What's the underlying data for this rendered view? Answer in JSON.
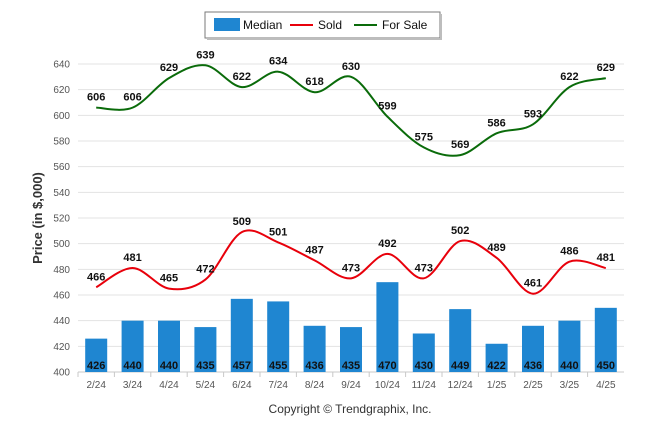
{
  "chart_data": {
    "type": "bar+line",
    "categories": [
      "2/24",
      "3/24",
      "4/24",
      "5/24",
      "6/24",
      "7/24",
      "8/24",
      "9/24",
      "10/24",
      "11/24",
      "12/24",
      "1/25",
      "2/25",
      "3/25",
      "4/25"
    ],
    "series": [
      {
        "name": "Median",
        "kind": "bar",
        "color": "#1f86d1",
        "values": [
          426,
          440,
          440,
          435,
          457,
          455,
          436,
          435,
          470,
          430,
          449,
          422,
          436,
          440,
          450
        ]
      },
      {
        "name": "Sold",
        "kind": "line",
        "color": "#e8000b",
        "values": [
          466,
          481,
          465,
          472,
          509,
          501,
          487,
          473,
          492,
          473,
          502,
          489,
          461,
          486,
          481
        ]
      },
      {
        "name": "For Sale",
        "kind": "line",
        "color": "#0a6b0a",
        "values": [
          606,
          606,
          629,
          639,
          622,
          634,
          618,
          630,
          599,
          575,
          569,
          586,
          593,
          622,
          629
        ]
      }
    ],
    "ylabel": "Price (in $,000)",
    "ylim": [
      400,
      640
    ],
    "yticks": [
      400,
      420,
      440,
      460,
      480,
      500,
      520,
      540,
      560,
      580,
      600,
      620,
      640
    ],
    "grid": true,
    "legend_position": "top-center",
    "credit": "Copyright © Trendgraphix, Inc."
  }
}
